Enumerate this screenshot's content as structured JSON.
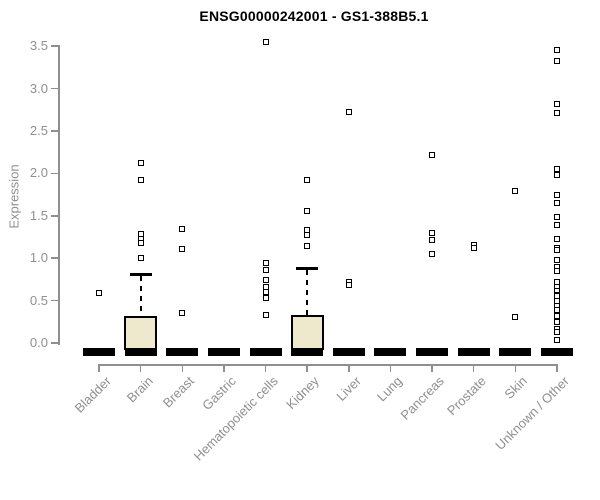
{
  "title": "ENSG00000242001 - GS1-388B5.1",
  "colors": {
    "background": "#FFFFFF",
    "box_fill": "#EEE8CD",
    "box_line": "#000000",
    "axis": "#8F8F8F",
    "tick_label": "#8F8F8F",
    "title_text": "#000000"
  },
  "chart_data": {
    "type": "boxplot",
    "title": "ENSG00000242001 - GS1-388B5.1",
    "xlabel": "",
    "ylabel": "Expression",
    "ylim": [
      0,
      3.5
    ],
    "yticks": [
      0.0,
      0.5,
      1.0,
      1.5,
      2.0,
      2.5,
      3.0,
      3.5
    ],
    "grid": false,
    "legend": false,
    "categories": [
      "Bladder",
      "Brain",
      "Breast",
      "Gastric",
      "Hematopoietic cells",
      "Kidney",
      "Liver",
      "Lung",
      "Pancreas",
      "Prostate",
      "Skin",
      "Unknown / Other"
    ],
    "series": [
      {
        "category": "Bladder",
        "q1": 0,
        "median": 0,
        "q3": 0,
        "whisker_low": 0,
        "whisker_high": 0,
        "outliers": [
          0.59
        ]
      },
      {
        "category": "Brain",
        "q1": 0,
        "median": 0,
        "q3": 0.32,
        "whisker_low": 0,
        "whisker_high": 0.83,
        "outliers": [
          2.12,
          1.92,
          1.28,
          1.23,
          1.18,
          1.0
        ]
      },
      {
        "category": "Breast",
        "q1": 0,
        "median": 0,
        "q3": 0,
        "whisker_low": 0,
        "whisker_high": 0,
        "outliers": [
          1.34,
          1.11,
          0.35
        ]
      },
      {
        "category": "Gastric",
        "q1": 0,
        "median": 0,
        "q3": 0,
        "whisker_low": 0,
        "whisker_high": 0,
        "outliers": []
      },
      {
        "category": "Hematopoietic cells",
        "q1": 0,
        "median": 0,
        "q3": 0,
        "whisker_low": 0,
        "whisker_high": 0,
        "outliers": [
          3.55,
          0.94,
          0.86,
          0.74,
          0.66,
          0.6,
          0.53,
          0.33
        ]
      },
      {
        "category": "Kidney",
        "q1": 0,
        "median": 0,
        "q3": 0.33,
        "whisker_low": 0,
        "whisker_high": 0.9,
        "outliers": [
          1.92,
          1.56,
          1.33,
          1.27,
          1.14
        ]
      },
      {
        "category": "Liver",
        "q1": 0,
        "median": 0,
        "q3": 0,
        "whisker_low": 0,
        "whisker_high": 0,
        "outliers": [
          2.72,
          0.72,
          0.68
        ]
      },
      {
        "category": "Lung",
        "q1": 0,
        "median": 0,
        "q3": 0,
        "whisker_low": 0,
        "whisker_high": 0,
        "outliers": []
      },
      {
        "category": "Pancreas",
        "q1": 0,
        "median": 0,
        "q3": 0,
        "whisker_low": 0,
        "whisker_high": 0,
        "outliers": [
          2.22,
          1.3,
          1.21,
          1.05
        ]
      },
      {
        "category": "Prostate",
        "q1": 0,
        "median": 0,
        "q3": 0,
        "whisker_low": 0,
        "whisker_high": 0,
        "outliers": [
          1.15,
          1.12
        ]
      },
      {
        "category": "Skin",
        "q1": 0,
        "median": 0,
        "q3": 0,
        "whisker_low": 0,
        "whisker_high": 0,
        "outliers": [
          1.79,
          0.31
        ]
      },
      {
        "category": "Unknown / Other",
        "q1": 0,
        "median": 0,
        "q3": 0,
        "whisker_low": 0,
        "whisker_high": 0,
        "outliers": [
          3.45,
          3.33,
          2.82,
          2.71,
          2.05,
          1.98,
          1.74,
          1.65,
          1.49,
          1.39,
          1.23,
          1.12,
          1.1,
          0.98,
          0.9,
          0.85,
          0.72,
          0.66,
          0.61,
          0.57,
          0.55,
          0.5,
          0.44,
          0.39,
          0.32,
          0.25,
          0.17,
          0.13,
          0.03
        ]
      }
    ]
  }
}
